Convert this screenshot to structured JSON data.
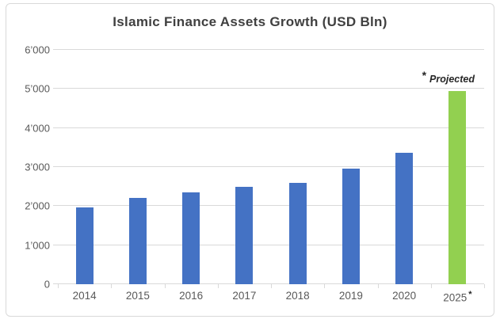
{
  "annotation": {
    "asterisk": "*",
    "label": "Projected"
  },
  "x_axis": {
    "projected_marker": "*"
  },
  "chart_data": {
    "type": "bar",
    "title": "Islamic Finance Assets Growth (USD Bln)",
    "categories": [
      "2014",
      "2015",
      "2016",
      "2017",
      "2018",
      "2019",
      "2020",
      "2025"
    ],
    "values": [
      1975,
      2200,
      2350,
      2500,
      2600,
      2960,
      3370,
      4940
    ],
    "xlabel": "",
    "ylabel": "",
    "ylim": [
      0,
      6000
    ],
    "ytick_step": 1000,
    "ytick_labels": [
      "0",
      "1’000",
      "2’000",
      "3’000",
      "4’000",
      "5’000",
      "6’000"
    ],
    "grid": true,
    "legend_position": "none",
    "projected_category": "2025",
    "annotation_text": "* Projected",
    "colors": {
      "bar_historical": "#4472C4",
      "bar_projected": "#92D050",
      "gridline": "#D9D9D9",
      "tick": "#D9D9D9",
      "axis_text": "#595959",
      "title_text": "#404040",
      "annotation_text": "#262626",
      "card_border": "#D9D9D9",
      "background": "#FFFFFF"
    }
  }
}
